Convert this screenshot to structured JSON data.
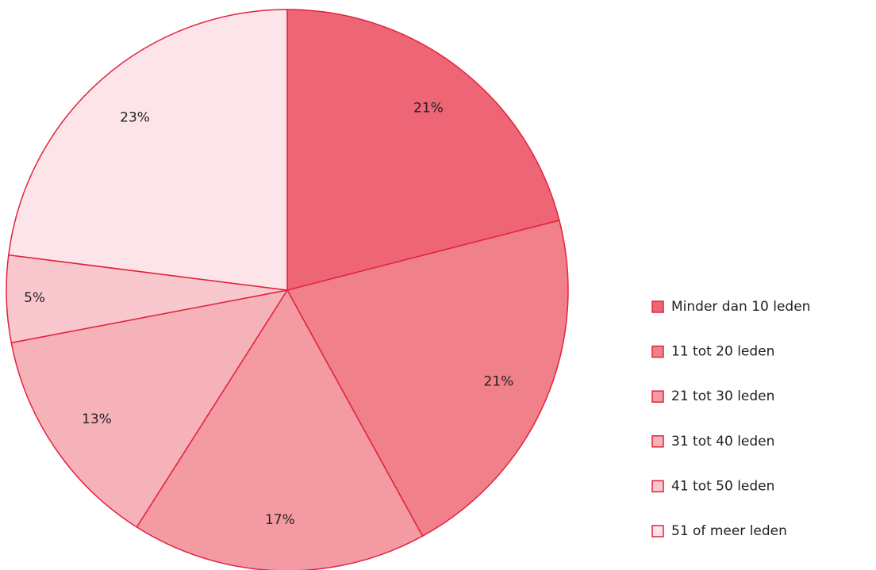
{
  "chart_data": {
    "type": "pie",
    "categories": [
      "Minder dan 10 leden",
      "11 tot 20 leden",
      "21 tot 30 leden",
      "31 tot 40 leden",
      "41 tot 50 leden",
      "51 of meer leden"
    ],
    "values": [
      21,
      21,
      17,
      13,
      5,
      23
    ],
    "value_labels": [
      "21%",
      "21%",
      "17%",
      "13%",
      "5%",
      "23%"
    ],
    "colors": [
      "#ee6576",
      "#f08089",
      "#f39aa3",
      "#f6b2b9",
      "#f8c8ce",
      "#fde4e8"
    ],
    "edge_color": "#e3223c",
    "legend": "right"
  }
}
